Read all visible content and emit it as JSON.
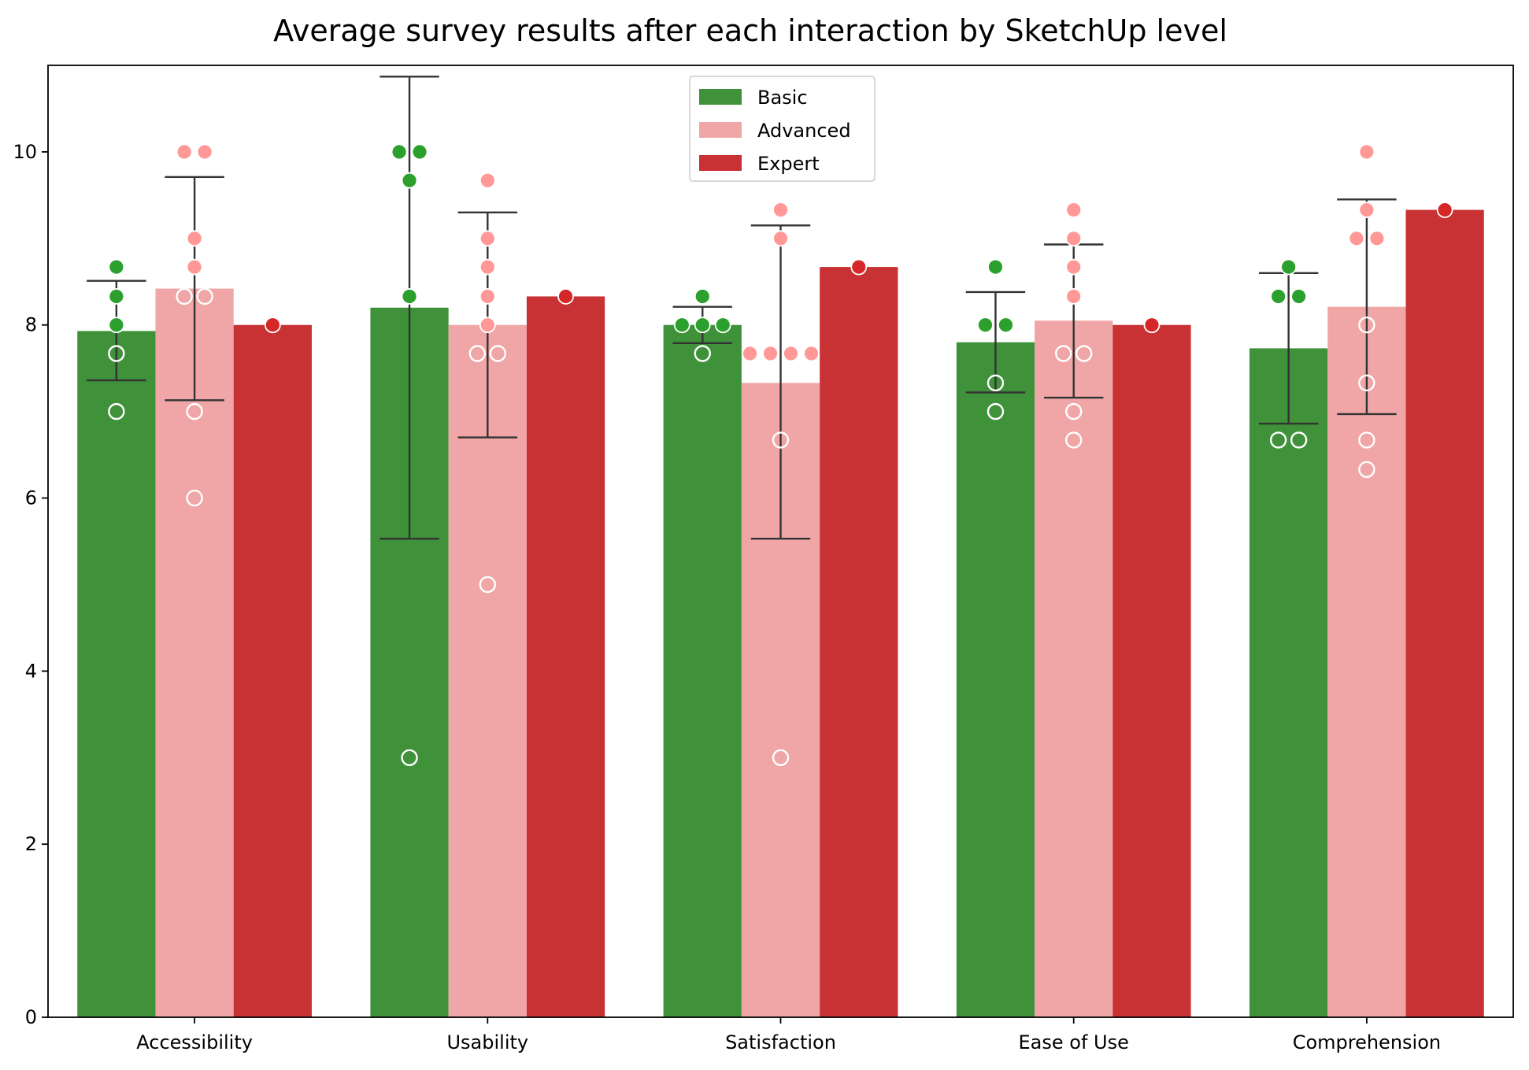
{
  "chart_data": {
    "type": "bar",
    "title": "Average survey results after each interaction by SketchUp level",
    "xlabel": "",
    "ylabel": "",
    "ylim": [
      0,
      11
    ],
    "yticks": [
      0,
      2,
      4,
      6,
      8,
      10
    ],
    "grid": false,
    "legend_position": "top-center",
    "categories": [
      "Accessibility",
      "Usability",
      "Satisfaction",
      "Ease of Use",
      "Comprehension"
    ],
    "series": [
      {
        "name": "Basic",
        "color": "#3f913a",
        "point_color": "#2ca02c",
        "values": [
          7.93,
          8.2,
          8.0,
          7.8,
          7.73
        ],
        "error_low": [
          7.36,
          5.53,
          7.79,
          7.22,
          6.86
        ],
        "error_high": [
          8.51,
          10.87,
          8.21,
          8.38,
          8.6
        ],
        "points": [
          [
            8.67,
            8.33,
            8.0,
            7.67,
            7.0
          ],
          [
            10.0,
            10.0,
            9.67,
            8.33,
            3.0
          ],
          [
            8.33,
            8.0,
            8.0,
            8.0,
            7.67
          ],
          [
            8.67,
            8.0,
            8.0,
            7.33,
            7.0
          ],
          [
            8.67,
            8.33,
            8.33,
            6.67,
            6.67
          ]
        ]
      },
      {
        "name": "Advanced",
        "color": "#f0a6a6",
        "point_color": "#ff9896",
        "values": [
          8.42,
          8.0,
          7.33,
          8.05,
          8.21
        ],
        "error_low": [
          7.13,
          6.7,
          5.53,
          7.16,
          6.97
        ],
        "error_high": [
          9.71,
          9.3,
          9.15,
          8.93,
          9.45
        ],
        "points": [
          [
            10.0,
            10.0,
            9.0,
            8.67,
            8.33,
            8.33,
            7.0,
            6.0
          ],
          [
            9.67,
            9.0,
            8.67,
            8.33,
            8.0,
            7.67,
            7.67,
            5.0
          ],
          [
            9.33,
            9.0,
            7.67,
            7.67,
            7.67,
            7.67,
            6.67,
            3.0
          ],
          [
            9.33,
            9.0,
            8.67,
            8.33,
            7.67,
            7.67,
            7.0,
            6.67
          ],
          [
            10.0,
            9.33,
            9.0,
            9.0,
            8.0,
            7.33,
            6.67,
            6.33
          ]
        ]
      },
      {
        "name": "Expert",
        "color": "#c93235",
        "point_color": "#d62728",
        "values": [
          8.0,
          8.33,
          8.67,
          8.0,
          9.33
        ],
        "error_low": [
          null,
          null,
          null,
          null,
          null
        ],
        "error_high": [
          null,
          null,
          null,
          null,
          null
        ],
        "points": [
          [
            8.0
          ],
          [
            8.33
          ],
          [
            8.67
          ],
          [
            8.0
          ],
          [
            9.33
          ]
        ]
      }
    ]
  }
}
